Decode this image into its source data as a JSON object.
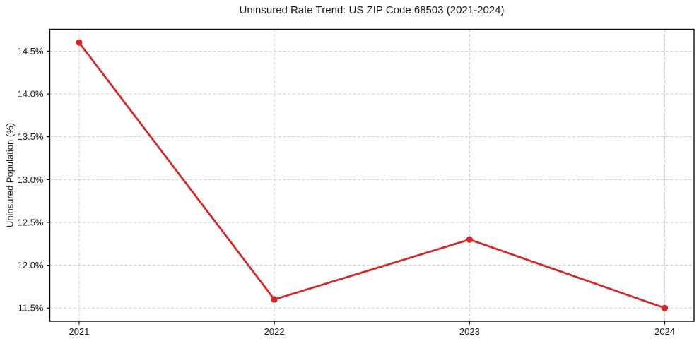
{
  "figure": {
    "title": "Uninsured Rate Trend: US ZIP Code 68503 (2021-2024)",
    "ylabel": "Uninsured Population (%)"
  },
  "chart_data": {
    "type": "line",
    "title": "Uninsured Rate Trend: US ZIP Code 68503 (2021-2024)",
    "xlabel": "",
    "ylabel": "Uninsured Population (%)",
    "categories": [
      "2021",
      "2022",
      "2023",
      "2024"
    ],
    "x": [
      2021,
      2022,
      2023,
      2024
    ],
    "series": [
      {
        "name": "uninsured-rate",
        "values": [
          14.6,
          11.6,
          12.3,
          11.5
        ],
        "color": "#d62728",
        "marker": "circle"
      }
    ],
    "xtick_labels": [
      "2021",
      "2022",
      "2023",
      "2024"
    ],
    "yticks": [
      11.5,
      12.0,
      12.5,
      13.0,
      13.5,
      14.0,
      14.5
    ],
    "ytick_labels": [
      "11.5%",
      "12.0%",
      "12.5%",
      "13.0%",
      "13.5%",
      "14.0%",
      "14.5%"
    ],
    "xlim": [
      2020.85,
      2024.15
    ],
    "ylim": [
      11.345,
      14.755
    ],
    "grid": true,
    "grid_style": "dashed",
    "grid_color": "#cccccc",
    "spine_color": "#0a0a0a",
    "tick_color": "#0a0a0a",
    "text_color": "#1a1a1a",
    "background": "#ffffff",
    "legend": "none"
  }
}
